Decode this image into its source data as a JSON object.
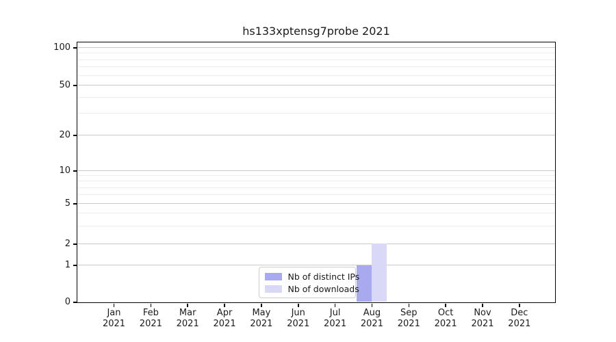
{
  "chart_data": {
    "type": "bar",
    "title": "hs133xptensg7probe 2021",
    "x_year": "2021",
    "categories": [
      "Jan",
      "Feb",
      "Mar",
      "Apr",
      "May",
      "Jun",
      "Jul",
      "Aug",
      "Sep",
      "Oct",
      "Nov",
      "Dec"
    ],
    "series": [
      {
        "name": "Nb of distinct IPs",
        "color": "#a9a9f0",
        "values": [
          0,
          0,
          0,
          0,
          0,
          0,
          0,
          1,
          0,
          0,
          0,
          0
        ]
      },
      {
        "name": "Nb of downloads",
        "color": "#d9d9f7",
        "values": [
          0,
          0,
          0,
          0,
          0,
          0,
          0,
          2,
          0,
          0,
          0,
          0
        ]
      }
    ],
    "y_axis": {
      "scale": "symlog",
      "ticks": [
        0,
        1,
        2,
        5,
        10,
        20,
        50,
        100
      ],
      "minor_ticks": [
        3,
        4,
        6,
        7,
        8,
        9,
        30,
        40,
        60,
        70,
        80,
        90
      ],
      "range": [
        0,
        110
      ]
    },
    "grid": {
      "horizontal": true,
      "vertical": false
    },
    "legend_position": "lower-center-inside"
  },
  "colors": {
    "major_grid": "#c9c9c9",
    "minor_grid": "#ececec",
    "spine": "#000000",
    "text": "#1a1a1a",
    "legend_border": "#cccccc"
  }
}
